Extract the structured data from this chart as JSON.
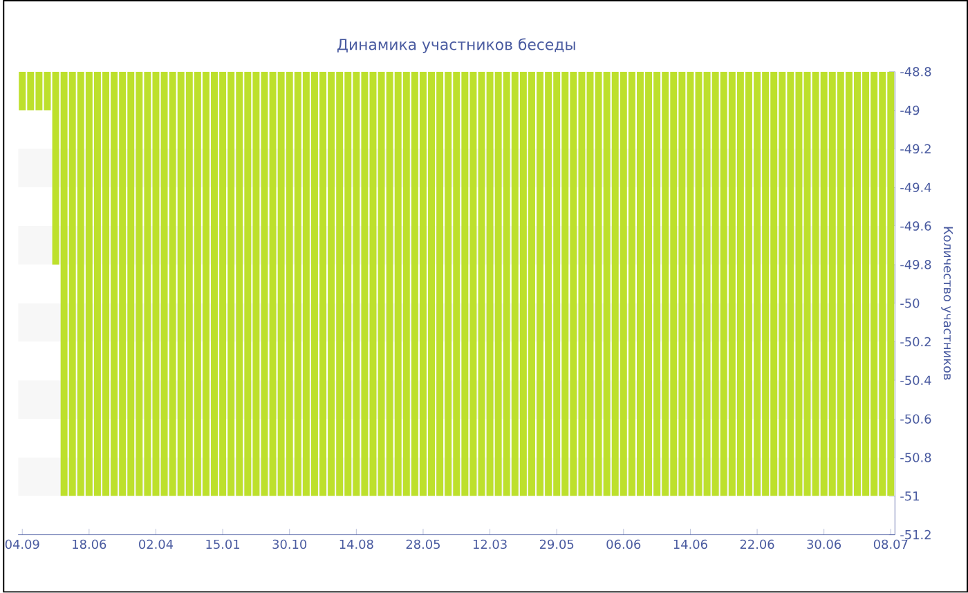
{
  "chart_data": {
    "type": "bar",
    "title": "Динамика участников беседы",
    "ylabel": "Количество участников",
    "categories": [
      "04.09",
      null,
      null,
      null,
      null,
      null,
      null,
      null,
      "18.06",
      null,
      null,
      null,
      null,
      null,
      null,
      null,
      "02.04",
      null,
      null,
      null,
      null,
      null,
      null,
      null,
      "15.01",
      null,
      null,
      null,
      null,
      null,
      null,
      null,
      "30.10",
      null,
      null,
      null,
      null,
      null,
      null,
      null,
      "14.08",
      null,
      null,
      null,
      null,
      null,
      null,
      null,
      "28.05",
      null,
      null,
      null,
      null,
      null,
      null,
      null,
      "12.03",
      null,
      null,
      null,
      null,
      null,
      null,
      null,
      "29.05",
      null,
      null,
      null,
      null,
      null,
      null,
      null,
      "06.06",
      null,
      null,
      null,
      null,
      null,
      null,
      null,
      "14.06",
      null,
      null,
      null,
      null,
      null,
      null,
      null,
      "22.06",
      null,
      null,
      null,
      null,
      null,
      null,
      null,
      "30.06",
      null,
      null,
      null,
      null,
      null,
      null,
      null,
      "08.07"
    ],
    "values": [
      -49,
      -49,
      -49,
      -49,
      -49.8,
      -51,
      -51,
      -51,
      -51,
      -51,
      -51,
      -51,
      -51,
      -51,
      -51,
      -51,
      -51,
      -51,
      -51,
      -51,
      -51,
      -51,
      -51,
      -51,
      -51,
      -51,
      -51,
      -51,
      -51,
      -51,
      -51,
      -51,
      -51,
      -51,
      -51,
      -51,
      -51,
      -51,
      -51,
      -51,
      -51,
      -51,
      -51,
      -51,
      -51,
      -51,
      -51,
      -51,
      -51,
      -51,
      -51,
      -51,
      -51,
      -51,
      -51,
      -51,
      -51,
      -51,
      -51,
      -51,
      -51,
      -51,
      -51,
      -51,
      -51,
      -51,
      -51,
      -51,
      -51,
      -51,
      -51,
      -51,
      -51,
      -51,
      -51,
      -51,
      -51,
      -51,
      -51,
      -51,
      -51,
      -51,
      -51,
      -51,
      -51,
      -51,
      -51,
      -51,
      -51,
      -51,
      -51,
      -51,
      -51,
      -51,
      -51,
      -51,
      -51,
      -51,
      -51,
      -51,
      -51,
      -51,
      -51,
      -51,
      -51
    ],
    "color": "#bde02c",
    "ylim": [
      -51.2,
      -48.8
    ],
    "yticks": [
      -51.2,
      -51,
      -50.8,
      -50.6,
      -50.4,
      -50.2,
      -50,
      -49.8,
      -49.6,
      -49.4,
      -49.2,
      -49,
      -48.8
    ],
    "bands": [
      {
        "axis": "y",
        "from": -49.4,
        "to": -49.2,
        "color": "#f7f7f7"
      },
      {
        "axis": "y",
        "from": -49.8,
        "to": -49.6,
        "color": "#f7f7f7"
      },
      {
        "axis": "y",
        "from": -50.2,
        "to": -50,
        "color": "#f7f7f7"
      },
      {
        "axis": "y",
        "from": -50.6,
        "to": -50.4,
        "color": "#f7f7f7"
      },
      {
        "axis": "y",
        "from": -51,
        "to": -50.8,
        "color": "#f7f7f7"
      }
    ]
  }
}
